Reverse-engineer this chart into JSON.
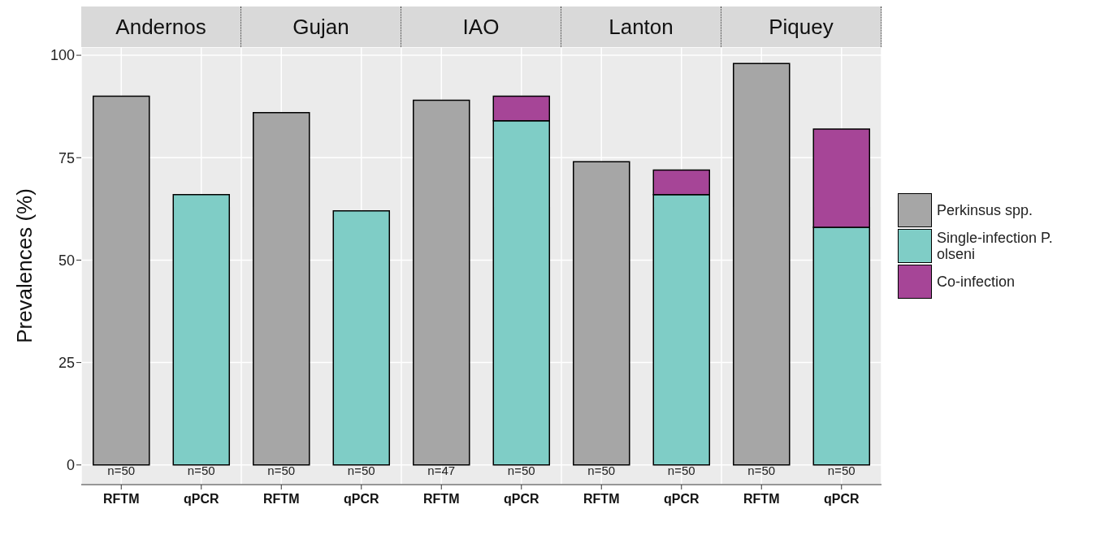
{
  "chart_data": [
    {
      "type": "bar",
      "title": "Andernos",
      "ylabel": "Prevalences (%)",
      "categories": [
        "RFTM",
        "qPCR"
      ],
      "stacked": true,
      "ylim": [
        -4.8,
        102
      ],
      "yticks": [
        0,
        25,
        50,
        75,
        100
      ],
      "grid": true,
      "legend": false,
      "series": [
        {
          "color": "#a6a6a6",
          "values": [
            90,
            null
          ]
        },
        {
          "color": "#7fcdc6",
          "values": [
            null,
            66
          ]
        },
        {
          "color": "#a64597",
          "values": [
            null,
            null
          ]
        }
      ],
      "annotations": [
        {
          "text": "n=50",
          "x": "RFTM",
          "y": 0
        },
        {
          "text": "n=50",
          "x": "qPCR",
          "y": 0
        }
      ]
    },
    {
      "type": "bar",
      "title": "Gujan",
      "categories": [
        "RFTM",
        "qPCR"
      ],
      "stacked": true,
      "ylim": [
        -4.8,
        102
      ],
      "yticks": [
        0,
        25,
        50,
        75,
        100
      ],
      "grid": true,
      "legend": false,
      "tick_labels": "x",
      "series": [
        {
          "color": "#a6a6a6",
          "values": [
            86,
            null
          ]
        },
        {
          "color": "#7fcdc6",
          "values": [
            null,
            62
          ]
        },
        {
          "color": "#a64597",
          "values": [
            null,
            null
          ]
        }
      ],
      "annotations": [
        {
          "text": "n=50",
          "x": "RFTM",
          "y": 0
        },
        {
          "text": "n=50",
          "x": "qPCR",
          "y": 0
        }
      ]
    },
    {
      "type": "bar",
      "title": "IAO",
      "categories": [
        "RFTM",
        "qPCR"
      ],
      "stacked": true,
      "ylim": [
        -4.8,
        102
      ],
      "yticks": [
        0,
        25,
        50,
        75,
        100
      ],
      "grid": true,
      "legend": false,
      "tick_labels": "x",
      "series": [
        {
          "color": "#a6a6a6",
          "values": [
            89,
            null
          ]
        },
        {
          "color": "#7fcdc6",
          "values": [
            null,
            84
          ]
        },
        {
          "color": "#a64597",
          "values": [
            null,
            6
          ]
        }
      ],
      "annotations": [
        {
          "text": "n=47",
          "x": "RFTM",
          "y": 0
        },
        {
          "text": "n=50",
          "x": "qPCR",
          "y": 0
        }
      ]
    },
    {
      "type": "bar",
      "title": "Lanton",
      "categories": [
        "RFTM",
        "qPCR"
      ],
      "stacked": true,
      "ylim": [
        -4.8,
        102
      ],
      "yticks": [
        0,
        25,
        50,
        75,
        100
      ],
      "grid": true,
      "legend": false,
      "tick_labels": "x",
      "series": [
        {
          "color": "#a6a6a6",
          "values": [
            74,
            null
          ]
        },
        {
          "color": "#7fcdc6",
          "values": [
            null,
            66
          ]
        },
        {
          "color": "#a64597",
          "values": [
            null,
            6
          ]
        }
      ],
      "annotations": [
        {
          "text": "n=50",
          "x": "RFTM",
          "y": 0
        },
        {
          "text": "n=50",
          "x": "qPCR",
          "y": 0
        }
      ]
    },
    {
      "type": "bar",
      "title": "Piquey",
      "categories": [
        "RFTM",
        "qPCR"
      ],
      "stacked": true,
      "ylim": [
        -4.8,
        102
      ],
      "yticks": [
        0,
        25,
        50,
        75,
        100
      ],
      "grid": true,
      "legend": "right",
      "tick_labels": "x",
      "series": [
        {
          "name": "Perkinsus spp.",
          "color": "#a6a6a6",
          "values": [
            98,
            null
          ]
        },
        {
          "name": "Single-infection P. olseni",
          "color": "#7fcdc6",
          "values": [
            null,
            58
          ]
        },
        {
          "name": "Co-infection",
          "color": "#a64597",
          "values": [
            null,
            24
          ]
        }
      ],
      "annotations": [
        {
          "text": "n=50",
          "x": "RFTM",
          "y": 0
        },
        {
          "text": "n=50",
          "x": "qPCR",
          "y": 0
        }
      ]
    }
  ]
}
